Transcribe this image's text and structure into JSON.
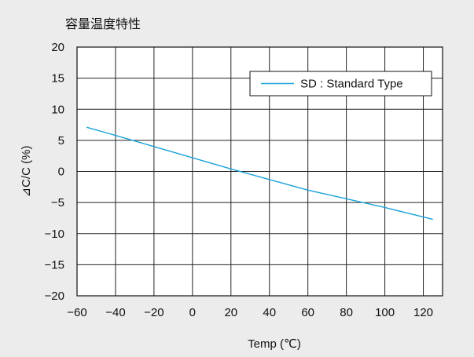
{
  "chart_data": {
    "type": "line",
    "title": "容量温度特性",
    "xlabel": "Temp (℃)",
    "ylabel": "⊿C/C (%)",
    "xlim": [
      -60,
      130
    ],
    "ylim": [
      -20,
      20
    ],
    "x_ticks": [
      -60,
      -40,
      -20,
      0,
      20,
      40,
      60,
      80,
      100,
      120
    ],
    "y_ticks": [
      20,
      15,
      10,
      5,
      0,
      -5,
      -10,
      -15,
      -20
    ],
    "x_tick_labels": [
      "−60",
      "−40",
      "−20",
      "0",
      "20",
      "40",
      "60",
      "80",
      "100",
      "120"
    ],
    "y_tick_labels": [
      "20",
      "15",
      "10",
      "5",
      "0",
      "−5",
      "−10",
      "−15",
      "−20"
    ],
    "grid": true,
    "legend_position": "top-right",
    "series": [
      {
        "name": "SD : Standard Type",
        "color": "#1aa3d9",
        "x": [
          -55,
          -40,
          -20,
          0,
          20,
          40,
          60,
          80,
          100,
          125
        ],
        "y": [
          7.1,
          5.8,
          4.0,
          2.2,
          0.4,
          -1.3,
          -3.0,
          -4.4,
          -5.8,
          -7.7
        ]
      }
    ]
  }
}
